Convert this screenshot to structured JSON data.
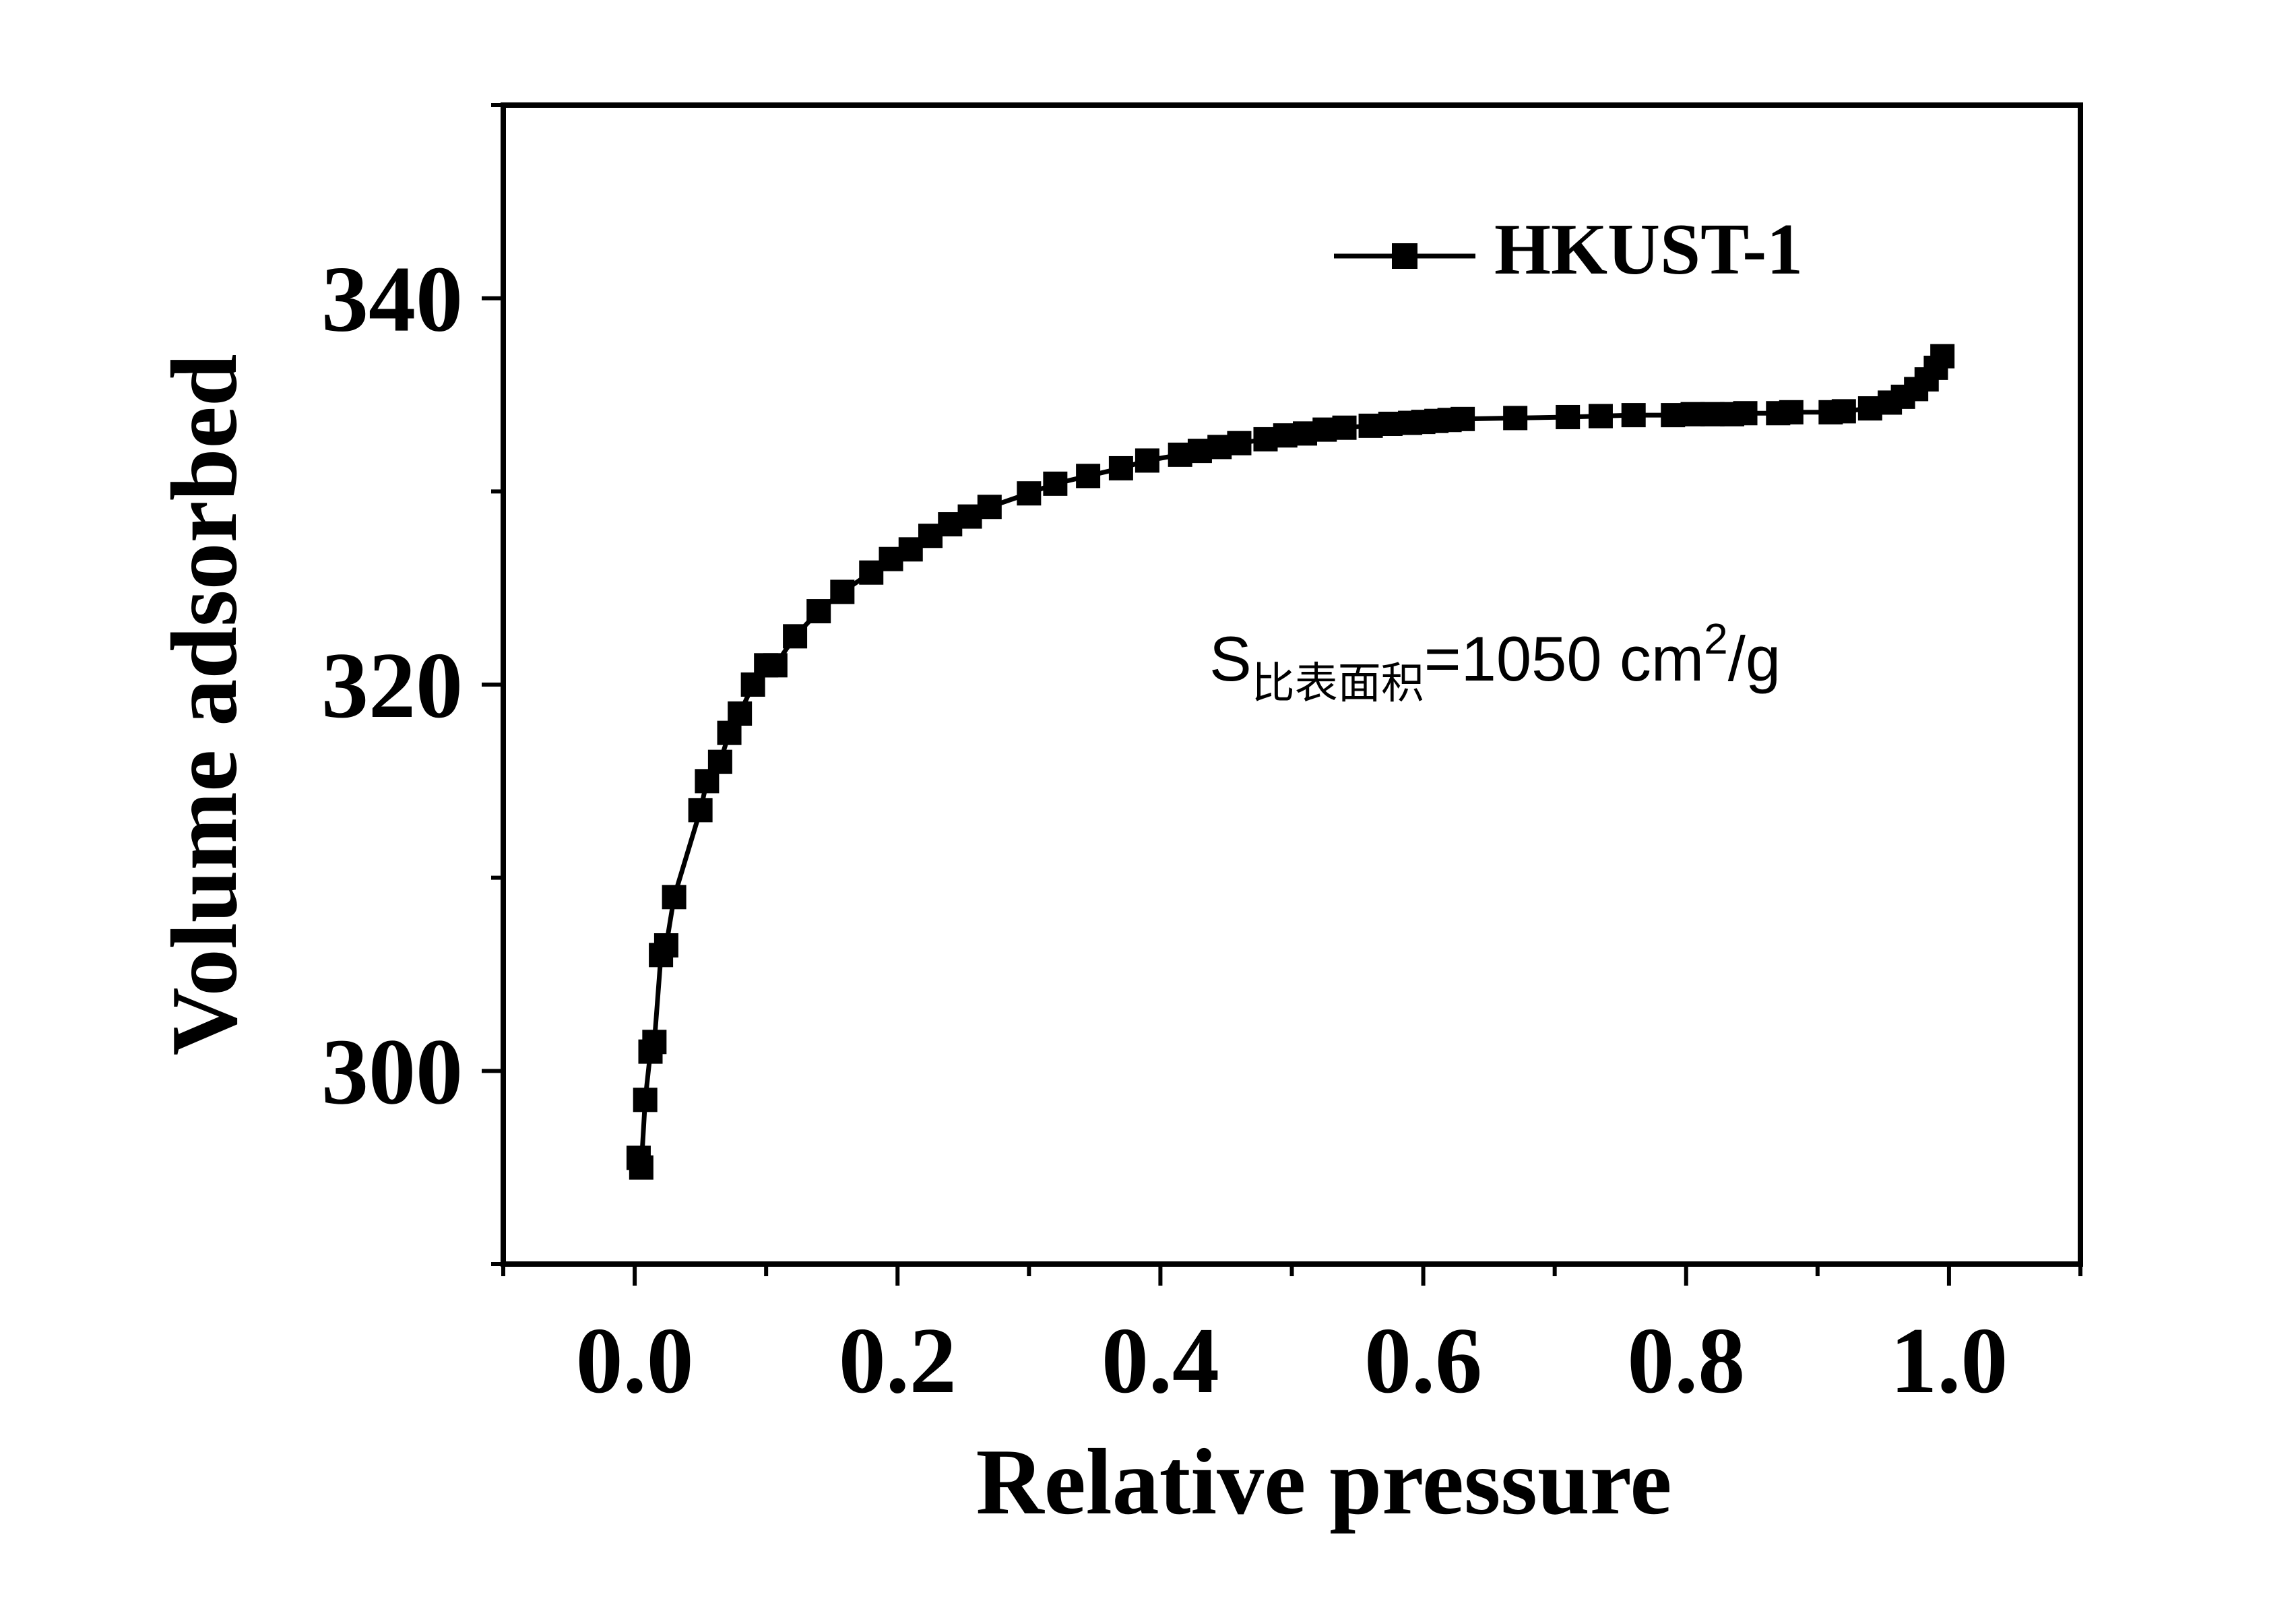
{
  "chart_data": {
    "type": "line",
    "xlabel": "Relative pressure",
    "ylabel": "Volume adsorbed",
    "xlim": [
      -0.1,
      1.1
    ],
    "ylim": [
      290,
      350
    ],
    "x_ticks": [
      "0.0",
      "0.2",
      "0.4",
      "0.6",
      "0.8",
      "1.0"
    ],
    "y_ticks": [
      "300",
      "320",
      "340"
    ],
    "grid": false,
    "legend_position": "top-right",
    "annotation": {
      "prefix": "S",
      "subscript": "比表面积",
      "body": "=1050 cm",
      "superscript": "2",
      "suffix": "/g"
    },
    "series": [
      {
        "name": "HKUST-1",
        "color": "#000000",
        "marker": "square",
        "x": [
          0.003,
          0.005,
          0.008,
          0.012,
          0.015,
          0.02,
          0.024,
          0.03,
          0.05,
          0.055,
          0.065,
          0.072,
          0.08,
          0.09,
          0.1,
          0.107,
          0.122,
          0.14,
          0.158,
          0.18,
          0.195,
          0.21,
          0.225,
          0.24,
          0.255,
          0.27,
          0.3,
          0.32,
          0.345,
          0.37,
          0.39,
          0.415,
          0.43,
          0.445,
          0.46,
          0.48,
          0.495,
          0.51,
          0.525,
          0.54,
          0.56,
          0.575,
          0.59,
          0.6,
          0.61,
          0.62,
          0.63,
          0.67,
          0.71,
          0.735,
          0.76,
          0.79,
          0.805,
          0.82,
          0.835,
          0.845,
          0.87,
          0.88,
          0.91,
          0.92,
          0.94,
          0.955,
          0.965,
          0.975,
          0.983,
          0.99,
          0.995
        ],
        "y": [
          295.5,
          295.0,
          298.5,
          301.0,
          301.5,
          306.0,
          306.5,
          309.0,
          313.5,
          315.0,
          316.0,
          317.5,
          318.5,
          320.0,
          321.0,
          321.0,
          322.5,
          323.8,
          324.8,
          325.8,
          326.5,
          327.0,
          327.7,
          328.3,
          328.7,
          329.2,
          329.9,
          330.4,
          330.8,
          331.2,
          331.6,
          331.9,
          332.1,
          332.3,
          332.5,
          332.7,
          332.9,
          333.0,
          333.2,
          333.3,
          333.4,
          333.5,
          333.55,
          333.6,
          333.65,
          333.7,
          333.75,
          333.8,
          333.85,
          333.9,
          333.95,
          333.95,
          334.0,
          334.0,
          334.0,
          334.05,
          334.05,
          334.1,
          334.1,
          334.15,
          334.3,
          334.6,
          334.9,
          335.3,
          335.8,
          336.4,
          337.0
        ]
      }
    ]
  }
}
